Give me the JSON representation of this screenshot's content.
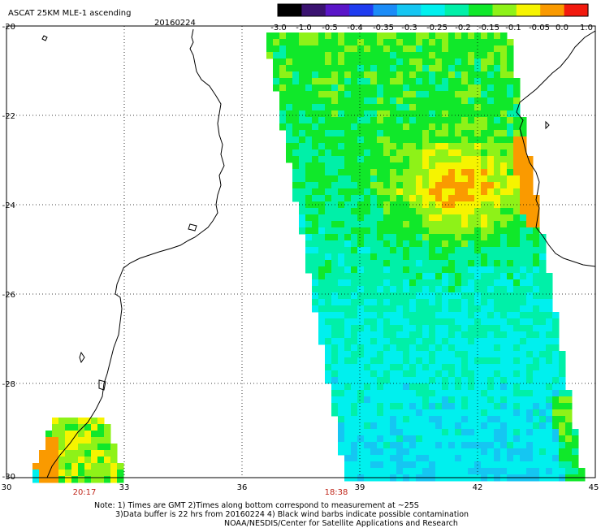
{
  "map": {
    "title": "ASCAT 25KM MLE-1 ascending",
    "date": "20160224",
    "lon_ticks": [
      "30",
      "33",
      "36",
      "39",
      "42",
      "45"
    ],
    "lat_ticks": [
      "-20",
      "-22",
      "-24",
      "-26",
      "-28",
      "-30"
    ],
    "swath_times": [
      "20:17",
      "18:38"
    ],
    "time_color": "#c0281c"
  },
  "colorbar": {
    "labels": [
      "-3.0",
      "-1.0",
      "-0.5",
      "-0.4",
      "-0.35",
      "-0.3",
      "-0.25",
      "-0.2",
      "-0.15",
      "-0.1",
      "-0.05",
      "0.0",
      "1.0"
    ],
    "colors": [
      "#000000",
      "#3a1370",
      "#5a16c8",
      "#1f3cf0",
      "#1b8cf7",
      "#15c6f2",
      "#00f0ee",
      "#00f0a8",
      "#10e82a",
      "#8ef218",
      "#f6f400",
      "#fa9a00",
      "#f21a0e"
    ]
  },
  "notes": [
    "Note: 1) Times are GMT 2)Times along bottom correspond to measurement at ~25S",
    "3)Data buffer is 22 hrs from 20160224 4) Black wind barbs indicate possible contamination",
    "NOAA/NESDIS/Center for Satellite Applications and Research"
  ]
}
